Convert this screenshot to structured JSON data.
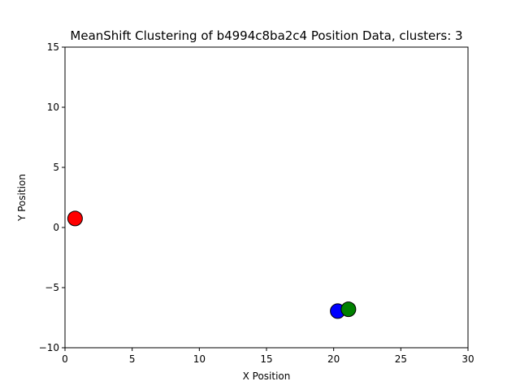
{
  "chart_data": {
    "type": "scatter",
    "title": "MeanShift Clustering of b4994c8ba2c4 Position Data, clusters: 3",
    "xlabel": "X Position",
    "ylabel": "Y Position",
    "xlim": [
      0,
      30
    ],
    "ylim": [
      -10,
      15
    ],
    "xticks": [
      0,
      5,
      10,
      15,
      20,
      25,
      30
    ],
    "yticks": [
      -10,
      -5,
      0,
      5,
      10,
      15
    ],
    "xtick_labels": [
      "0",
      "5",
      "10",
      "15",
      "20",
      "25",
      "30"
    ],
    "ytick_labels": [
      "−10",
      "−5",
      "0",
      "5",
      "10",
      "15"
    ],
    "grid": false,
    "points": [
      {
        "x": 0.75,
        "y": 0.75,
        "color": "#ff0000"
      },
      {
        "x": 20.3,
        "y": -6.95,
        "color": "#0000ff"
      },
      {
        "x": 21.1,
        "y": -6.8,
        "color": "#008000"
      }
    ]
  }
}
